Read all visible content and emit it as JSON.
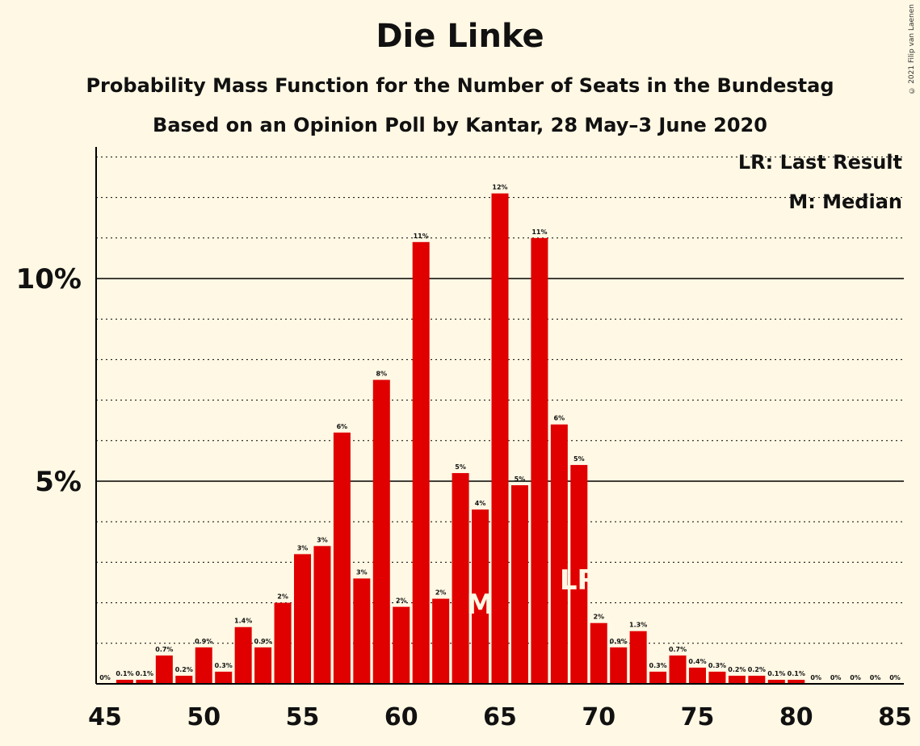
{
  "title": "Die Linke",
  "subtitle1": "Probability Mass Function for the Number of Seats in the Bundestag",
  "subtitle2": "Based on an Opinion Poll by Kantar, 28 May–3 June 2020",
  "copyright": "© 2021 Filip van Laenen",
  "colors": {
    "background": "#fff8e4",
    "bar": "#e00000",
    "text": "#111111"
  },
  "legend": {
    "lr": "LR: Last Result",
    "m": "M: Median",
    "position": "top-right"
  },
  "markers": {
    "median": {
      "x": 64,
      "label": "M"
    },
    "last_result": {
      "x": 69,
      "label": "LR"
    }
  },
  "chart_data": {
    "type": "bar",
    "x": [
      45,
      46,
      47,
      48,
      49,
      50,
      51,
      52,
      53,
      54,
      55,
      56,
      57,
      58,
      59,
      60,
      61,
      62,
      63,
      64,
      65,
      66,
      67,
      68,
      69,
      70,
      71,
      72,
      73,
      74,
      75,
      76,
      77,
      78,
      79,
      80,
      81,
      82,
      83,
      84,
      85
    ],
    "values": [
      0,
      0.1,
      0.1,
      0.7,
      0.2,
      0.9,
      0.3,
      1.4,
      0.9,
      2.0,
      3.2,
      3.4,
      6.2,
      2.6,
      7.5,
      1.9,
      10.9,
      2.1,
      5.2,
      4.3,
      12.1,
      4.9,
      11.0,
      6.4,
      5.4,
      1.5,
      0.9,
      1.3,
      0.3,
      0.7,
      0.4,
      0.3,
      0.2,
      0.2,
      0.1,
      0.1,
      0,
      0,
      0,
      0,
      0
    ],
    "labels": [
      "0%",
      "0.1%",
      "0.1%",
      "0.7%",
      "0.2%",
      "0.9%",
      "0.3%",
      "1.4%",
      "0.9%",
      "2%",
      "3%",
      "3%",
      "6%",
      "3%",
      "8%",
      "2%",
      "11%",
      "2%",
      "5%",
      "4%",
      "12%",
      "5%",
      "11%",
      "6%",
      "5%",
      "2%",
      "0.9%",
      "1.3%",
      "0.3%",
      "0.7%",
      "0.4%",
      "0.3%",
      "0.2%",
      "0.2%",
      "0.1%",
      "0.1%",
      "0%",
      "0%",
      "0%",
      "0%",
      "0%"
    ],
    "xticks": [
      45,
      50,
      55,
      60,
      65,
      70,
      75,
      80,
      85
    ],
    "yticks": [
      {
        "value": 5,
        "label": "5%"
      },
      {
        "value": 10,
        "label": "10%"
      }
    ],
    "ylim": [
      0,
      13.2
    ],
    "grid": "dotted every 1%, solid at 5% and 10%"
  }
}
